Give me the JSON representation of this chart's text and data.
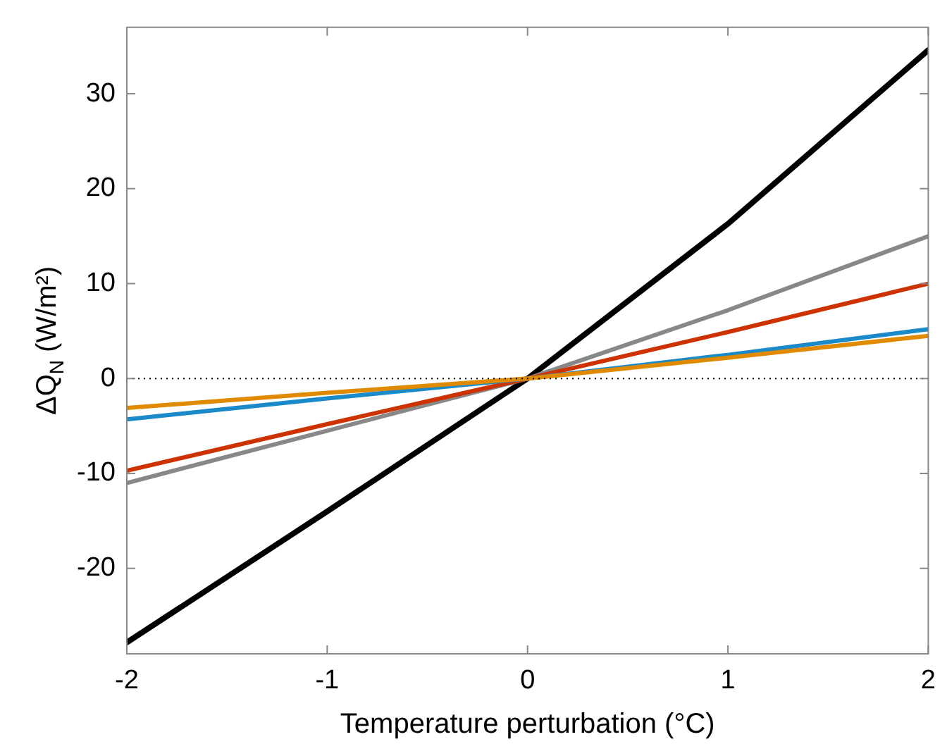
{
  "chart_data": {
    "type": "line",
    "xlabel": "Temperature perturbation (°C)",
    "ylabel": "ΔQ$_{N}$ (W/m²)",
    "x": [
      -2,
      -1,
      0,
      1,
      2
    ],
    "series": [
      {
        "color": "#e08a00",
        "values": [
          -3.1,
          -1.5,
          0,
          2.2,
          4.5
        ]
      },
      {
        "color": "#1a8ac8",
        "values": [
          -4.3,
          -2.1,
          0,
          2.5,
          5.2
        ]
      },
      {
        "color": "#cc3300",
        "values": [
          -9.7,
          -4.8,
          0,
          4.9,
          10
        ]
      },
      {
        "color": "#888888",
        "values": [
          -11,
          -5.5,
          0,
          7.2,
          15
        ]
      },
      {
        "color": "#000000",
        "values": [
          -27.8,
          -14,
          0,
          16.3,
          34.6
        ]
      }
    ],
    "xlim": [
      -2,
      2
    ],
    "xticks": [
      -2,
      -1,
      0,
      1,
      2
    ],
    "ylim": [
      -29,
      37
    ],
    "yticks": [
      -20,
      -10,
      0,
      10,
      20,
      30
    ],
    "ref_lines": [
      {
        "axis": "y",
        "value": 0,
        "line_style": "dotted",
        "color": "#000000"
      }
    ],
    "grid": false,
    "legend": false,
    "marker": "none",
    "line_style": "solid"
  }
}
